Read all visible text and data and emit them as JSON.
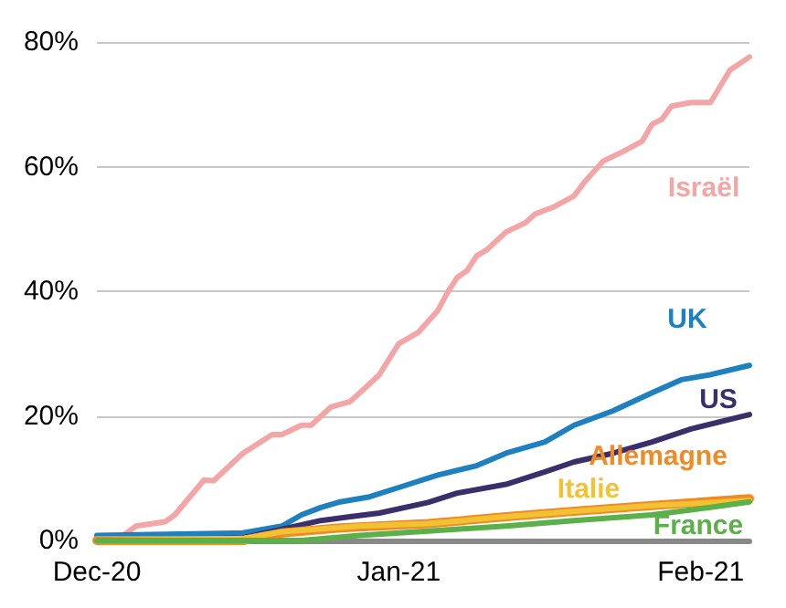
{
  "chart_data": {
    "type": "line",
    "marker": "none",
    "line_style": "solid",
    "grid": "y",
    "legend": false,
    "xlim": [
      "2020-12-01",
      "2021-02-06"
    ],
    "xticks": [
      {
        "value": "2020-12-01",
        "label": "Dec-20"
      },
      {
        "value": "2021-01-01",
        "label": "Jan-21"
      },
      {
        "value": "2021-02-01",
        "label": "Feb-21"
      }
    ],
    "ylim": [
      0,
      80
    ],
    "yticks": [
      {
        "value": 0,
        "label": "0%"
      },
      {
        "value": 20,
        "label": "20%"
      },
      {
        "value": 40,
        "label": "40%"
      },
      {
        "value": 60,
        "label": "60%"
      },
      {
        "value": 80,
        "label": "80%"
      }
    ],
    "series": [
      {
        "name": "Israël",
        "color": "#f4a6a6",
        "x": [
          "2020-12-01",
          "2020-12-03",
          "2020-12-05",
          "2020-12-08",
          "2020-12-09",
          "2020-12-12",
          "2020-12-13",
          "2020-12-16",
          "2020-12-19",
          "2020-12-20",
          "2020-12-22",
          "2020-12-23",
          "2020-12-25",
          "2020-12-27",
          "2020-12-28",
          "2020-12-30",
          "2021-01-01",
          "2021-01-03",
          "2021-01-05",
          "2021-01-06",
          "2021-01-07",
          "2021-01-08",
          "2021-01-09",
          "2021-01-10",
          "2021-01-12",
          "2021-01-14",
          "2021-01-15",
          "2021-01-17",
          "2021-01-19",
          "2021-01-20",
          "2021-01-22",
          "2021-01-24",
          "2021-01-26",
          "2021-01-27",
          "2021-01-28",
          "2021-01-29",
          "2021-01-31",
          "2021-02-02",
          "2021-02-04",
          "2021-02-06"
        ],
        "values": [
          0,
          0,
          2.3,
          3,
          4.1,
          9.7,
          9.6,
          14,
          17,
          17,
          18.5,
          18.5,
          21.4,
          22.3,
          23.7,
          26.6,
          31.6,
          33.4,
          36.9,
          39.8,
          42.2,
          43.3,
          45.7,
          46.6,
          49.5,
          51,
          52.4,
          53.6,
          55.3,
          57.4,
          60.9,
          62.4,
          64.1,
          66.8,
          67.6,
          69.7,
          70.3,
          70.3,
          75.5,
          77.6
        ]
      },
      {
        "name": "UK",
        "color": "#1f80c0",
        "x": [
          "2020-12-01",
          "2020-12-16",
          "2020-12-20",
          "2020-12-22",
          "2020-12-24",
          "2020-12-26",
          "2020-12-29",
          "2021-01-01",
          "2021-01-05",
          "2021-01-09",
          "2021-01-12",
          "2021-01-16",
          "2021-01-19",
          "2021-01-23",
          "2021-01-27",
          "2021-01-30",
          "2021-02-02",
          "2021-02-06"
        ],
        "values": [
          0.8,
          1.2,
          2.3,
          4.1,
          5.3,
          6.2,
          7,
          8.5,
          10.5,
          12,
          14,
          15.8,
          18.5,
          20.8,
          23.7,
          25.8,
          26.6,
          28.1
        ]
      },
      {
        "name": "US",
        "color": "#3b2f6b",
        "x": [
          "2020-12-01",
          "2020-12-16",
          "2020-12-20",
          "2020-12-24",
          "2020-12-27",
          "2020-12-30",
          "2021-01-04",
          "2021-01-07",
          "2021-01-12",
          "2021-01-16",
          "2021-01-19",
          "2021-01-23",
          "2021-01-27",
          "2021-01-31",
          "2021-02-06"
        ],
        "values": [
          0,
          0.4,
          1.8,
          3.2,
          3.8,
          4.4,
          6.1,
          7.6,
          9,
          11,
          12.6,
          14,
          15.8,
          17.9,
          20.2
        ]
      },
      {
        "name": "Allemagne",
        "color": "#f08a24",
        "x": [
          "2020-12-01",
          "2020-12-16",
          "2020-12-20",
          "2020-12-26",
          "2021-01-04",
          "2021-01-12",
          "2021-01-19",
          "2021-01-27",
          "2021-02-06"
        ],
        "values": [
          0,
          0,
          1.2,
          2,
          2.7,
          3.8,
          4.7,
          5.6,
          6.7
        ]
      },
      {
        "name": "Italie",
        "color": "#f2c232",
        "x": [
          "2020-12-01",
          "2020-12-16",
          "2020-12-20",
          "2020-12-28",
          "2021-01-04",
          "2021-01-12",
          "2021-01-19",
          "2021-01-27",
          "2021-02-06"
        ],
        "values": [
          0,
          0.3,
          1.4,
          2.3,
          2.7,
          3.8,
          4.7,
          5.6,
          6.4
        ]
      },
      {
        "name": "France",
        "color": "#5bb04a",
        "x": [
          "2020-12-01",
          "2020-12-22",
          "2020-12-28",
          "2021-01-04",
          "2021-01-12",
          "2021-01-19",
          "2021-01-27",
          "2021-02-02",
          "2021-02-06"
        ],
        "values": [
          0,
          0,
          0.8,
          1.5,
          2.3,
          3.2,
          4.1,
          5.3,
          6.2
        ]
      }
    ]
  }
}
